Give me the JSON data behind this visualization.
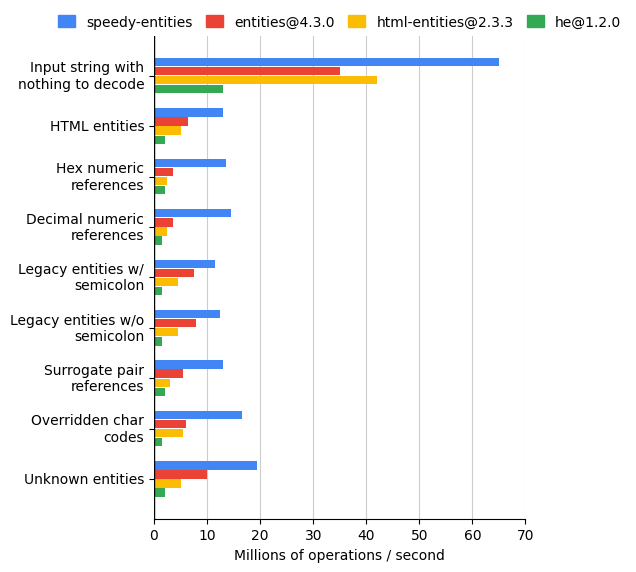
{
  "categories": [
    "Input string with\nnothing to decode",
    "HTML entities",
    "Hex numeric\nreferences",
    "Decimal numeric\nreferences",
    "Legacy entities w/\nsemicolon",
    "Legacy entities w/o\nsemicolon",
    "Surrogate pair\nreferences",
    "Overridden char\ncodes",
    "Unknown entities"
  ],
  "series": [
    {
      "label": "speedy-entities",
      "color": "#4285f4",
      "values": [
        65,
        13,
        13.5,
        14.5,
        11.5,
        12.5,
        13,
        16.5,
        19.5
      ]
    },
    {
      "label": "entities@4.3.0",
      "color": "#ea4335",
      "values": [
        35,
        6.5,
        3.5,
        3.5,
        7.5,
        8,
        5.5,
        6,
        10
      ]
    },
    {
      "label": "html-entities@2.3.3",
      "color": "#fbbc04",
      "values": [
        42,
        5,
        2.5,
        2.5,
        4.5,
        4.5,
        3,
        5.5,
        5
      ]
    },
    {
      "label": "he@1.2.0",
      "color": "#34a853",
      "values": [
        13,
        2,
        2,
        1.5,
        1.5,
        1.5,
        2,
        1.5,
        2
      ]
    }
  ],
  "xlabel": "Millions of operations / second",
  "xlim": [
    0,
    70
  ],
  "xticks": [
    0,
    10,
    20,
    30,
    40,
    50,
    60,
    70
  ],
  "bar_height": 0.18,
  "background_color": "#ffffff",
  "grid_color": "#cccccc",
  "tick_fontsize": 10,
  "legend_fontsize": 10
}
